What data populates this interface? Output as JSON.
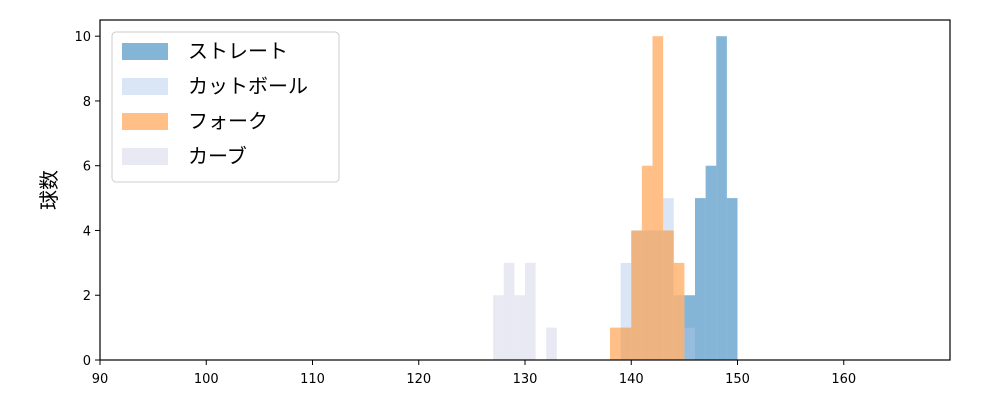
{
  "chart_data": {
    "type": "bar",
    "subtype": "overlapping-histogram",
    "xlim": [
      90,
      170
    ],
    "ylim": [
      0,
      10.5
    ],
    "xticks": [
      90,
      100,
      110,
      120,
      130,
      140,
      150,
      160
    ],
    "yticks": [
      0,
      2,
      4,
      6,
      8,
      10
    ],
    "xlabel": "",
    "ylabel": "球数",
    "bin_width": 1,
    "legend_position": "top-left",
    "series": [
      {
        "name": "ストレート",
        "color": "#1f77b4",
        "opacity": 0.55,
        "bins": [
          {
            "x": 145,
            "count": 2
          },
          {
            "x": 146,
            "count": 5
          },
          {
            "x": 147,
            "count": 6
          },
          {
            "x": 148,
            "count": 10
          },
          {
            "x": 149,
            "count": 5
          }
        ]
      },
      {
        "name": "カットボール",
        "color": "#aec7e8",
        "opacity": 0.45,
        "bins": [
          {
            "x": 139,
            "count": 3
          },
          {
            "x": 140,
            "count": 4
          },
          {
            "x": 141,
            "count": 4
          },
          {
            "x": 142,
            "count": 4
          },
          {
            "x": 143,
            "count": 5
          },
          {
            "x": 144,
            "count": 2
          },
          {
            "x": 145,
            "count": 1
          }
        ]
      },
      {
        "name": "フォーク",
        "color": "#ff7f0e",
        "opacity": 0.5,
        "bins": [
          {
            "x": 138,
            "count": 1
          },
          {
            "x": 139,
            "count": 1
          },
          {
            "x": 140,
            "count": 4
          },
          {
            "x": 141,
            "count": 6
          },
          {
            "x": 142,
            "count": 10
          },
          {
            "x": 143,
            "count": 4
          },
          {
            "x": 144,
            "count": 3
          }
        ]
      },
      {
        "name": "カーブ",
        "color": "#c5c8e0",
        "opacity": 0.4,
        "bins": [
          {
            "x": 127,
            "count": 2
          },
          {
            "x": 128,
            "count": 3
          },
          {
            "x": 129,
            "count": 2
          },
          {
            "x": 130,
            "count": 3
          },
          {
            "x": 132,
            "count": 1
          }
        ]
      }
    ]
  }
}
